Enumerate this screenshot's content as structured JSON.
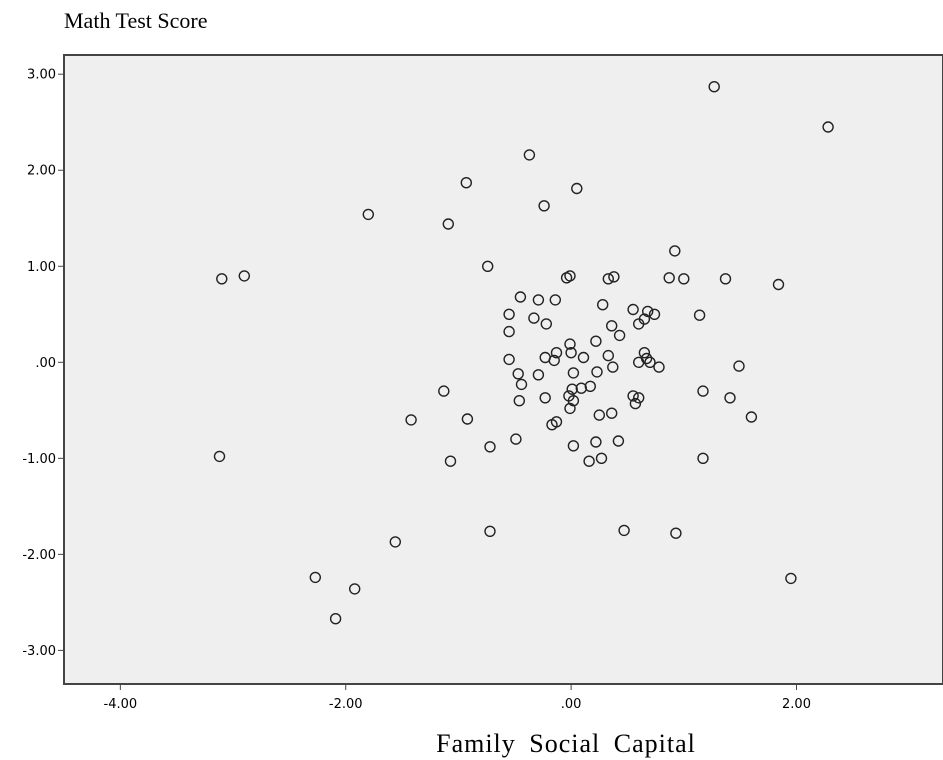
{
  "chart_data": {
    "type": "scatter",
    "ylabel": "Math Test Score",
    "xlabel": "Family Social Capital",
    "xlim": [
      -4.5,
      3.3
    ],
    "ylim": [
      -3.35,
      3.2
    ],
    "x_ticks": [
      -4,
      -2,
      0,
      2
    ],
    "x_tick_labels": [
      "-4.00",
      "-2.00",
      ".00",
      "2.00"
    ],
    "y_ticks": [
      3,
      2,
      1,
      0,
      -1,
      -2,
      -3
    ],
    "y_tick_labels": [
      "3.00",
      "2.00",
      "1.00",
      ".00",
      "-1.00",
      "-2.00",
      "-3.00"
    ],
    "grid": false,
    "marker": "open-circle",
    "plot_background": "#efefef",
    "points": [
      [
        1.27,
        2.87
      ],
      [
        2.28,
        2.45
      ],
      [
        -0.37,
        2.16
      ],
      [
        -0.93,
        1.87
      ],
      [
        0.05,
        1.81
      ],
      [
        -0.24,
        1.63
      ],
      [
        -1.8,
        1.54
      ],
      [
        -1.09,
        1.44
      ],
      [
        0.92,
        1.16
      ],
      [
        -0.74,
        1.0
      ],
      [
        -3.1,
        0.87
      ],
      [
        -2.9,
        0.9
      ],
      [
        1.0,
        0.87
      ],
      [
        0.87,
        0.88
      ],
      [
        1.37,
        0.87
      ],
      [
        1.84,
        0.81
      ],
      [
        0.38,
        0.89
      ],
      [
        0.33,
        0.87
      ],
      [
        -0.04,
        0.88
      ],
      [
        -0.01,
        0.9
      ],
      [
        -0.45,
        0.68
      ],
      [
        -0.29,
        0.65
      ],
      [
        -0.14,
        0.65
      ],
      [
        0.28,
        0.6
      ],
      [
        0.55,
        0.55
      ],
      [
        0.68,
        0.53
      ],
      [
        0.74,
        0.5
      ],
      [
        1.14,
        0.49
      ],
      [
        -0.55,
        0.5
      ],
      [
        -0.33,
        0.46
      ],
      [
        -0.22,
        0.4
      ],
      [
        0.36,
        0.38
      ],
      [
        0.6,
        0.4
      ],
      [
        0.65,
        0.45
      ],
      [
        0.43,
        0.28
      ],
      [
        -0.55,
        0.32
      ],
      [
        0.22,
        0.22
      ],
      [
        -0.01,
        0.19
      ],
      [
        -0.13,
        0.1
      ],
      [
        0.0,
        0.1
      ],
      [
        0.11,
        0.05
      ],
      [
        0.33,
        0.07
      ],
      [
        0.65,
        0.1
      ],
      [
        0.67,
        0.04
      ],
      [
        0.6,
        0.0
      ],
      [
        0.7,
        0.0
      ],
      [
        0.78,
        -0.05
      ],
      [
        1.49,
        -0.04
      ],
      [
        -0.55,
        0.03
      ],
      [
        -0.23,
        0.05
      ],
      [
        -0.15,
        0.02
      ],
      [
        -0.47,
        -0.12
      ],
      [
        -0.29,
        -0.13
      ],
      [
        0.02,
        -0.11
      ],
      [
        0.23,
        -0.1
      ],
      [
        0.37,
        -0.05
      ],
      [
        -0.44,
        -0.23
      ],
      [
        0.17,
        -0.25
      ],
      [
        0.09,
        -0.27
      ],
      [
        0.01,
        -0.28
      ],
      [
        -0.02,
        -0.35
      ],
      [
        0.55,
        -0.35
      ],
      [
        0.6,
        -0.37
      ],
      [
        0.57,
        -0.43
      ],
      [
        -0.23,
        -0.37
      ],
      [
        -0.46,
        -0.4
      ],
      [
        0.02,
        -0.4
      ],
      [
        -0.01,
        -0.48
      ],
      [
        0.36,
        -0.53
      ],
      [
        0.25,
        -0.55
      ],
      [
        1.17,
        -0.3
      ],
      [
        1.41,
        -0.37
      ],
      [
        -1.13,
        -0.3
      ],
      [
        -1.42,
        -0.6
      ],
      [
        -0.92,
        -0.59
      ],
      [
        1.6,
        -0.57
      ],
      [
        -0.17,
        -0.65
      ],
      [
        -0.13,
        -0.62
      ],
      [
        -0.49,
        -0.8
      ],
      [
        0.22,
        -0.83
      ],
      [
        0.42,
        -0.82
      ],
      [
        0.02,
        -0.87
      ],
      [
        -0.72,
        -0.88
      ],
      [
        0.27,
        -1.0
      ],
      [
        0.16,
        -1.03
      ],
      [
        1.17,
        -1.0
      ],
      [
        -1.07,
        -1.03
      ],
      [
        -3.12,
        -0.98
      ],
      [
        -0.72,
        -1.76
      ],
      [
        0.47,
        -1.75
      ],
      [
        0.93,
        -1.78
      ],
      [
        -1.56,
        -1.87
      ],
      [
        -2.27,
        -2.24
      ],
      [
        -1.92,
        -2.36
      ],
      [
        -2.09,
        -2.67
      ],
      [
        1.95,
        -2.25
      ]
    ]
  }
}
